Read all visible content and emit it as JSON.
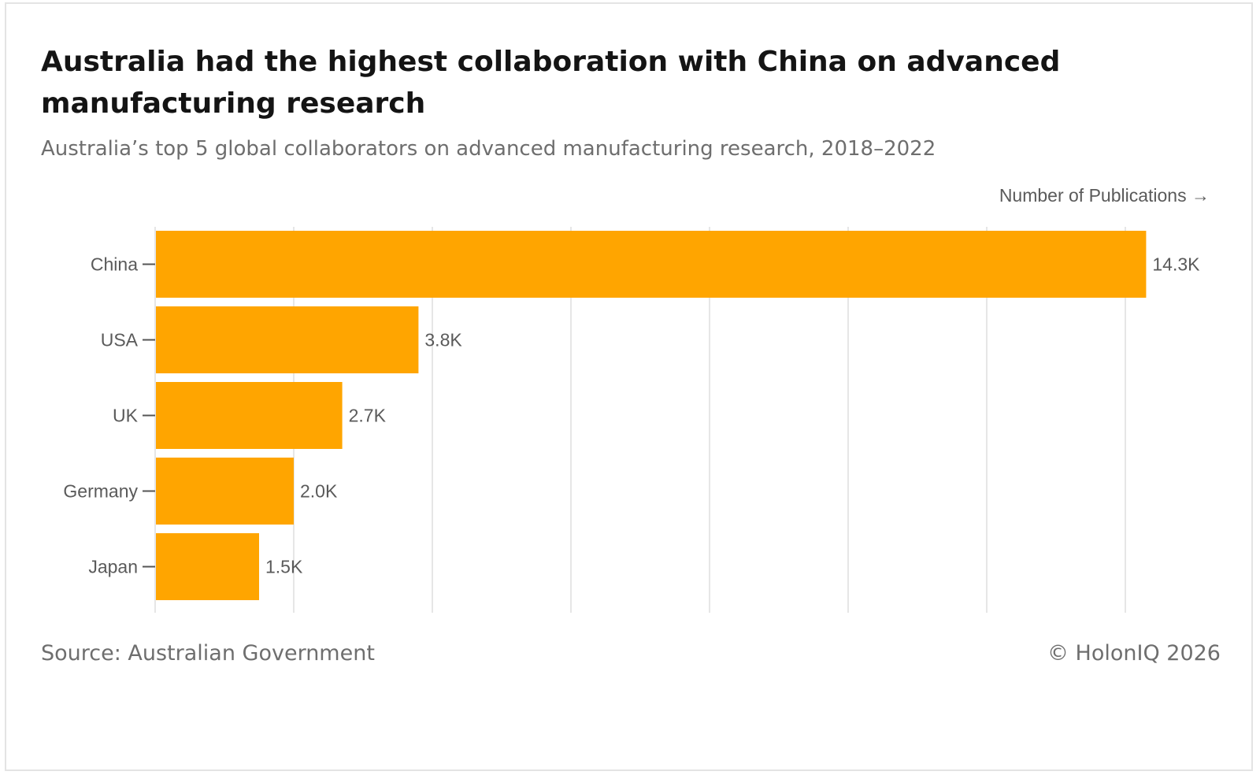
{
  "header": {
    "title": "Australia had the highest collaboration with China on advanced manufacturing research",
    "subtitle": "Australia’s top 5 global collaborators on advanced manufacturing research, 2018–2022"
  },
  "footer": {
    "source": "Source: Australian Government",
    "copyright": "© HolonIQ 2026"
  },
  "colors": {
    "bar": "#ffa500",
    "grid": "#e6e6e6",
    "axis": "#555555"
  },
  "chart_data": {
    "type": "bar",
    "orientation": "horizontal",
    "title": "Australia had the highest collaboration with China on advanced manufacturing research",
    "subtitle": "Australia’s top 5 global collaborators on advanced manufacturing research, 2018–2022",
    "xlabel": "Number of Publications →",
    "ylabel": "",
    "categories": [
      "China",
      "USA",
      "UK",
      "Germany",
      "Japan"
    ],
    "values": [
      14300,
      3800,
      2700,
      2000,
      1500
    ],
    "data_labels": [
      "14.3K",
      "3.8K",
      "2.7K",
      "2.0K",
      "1.5K"
    ],
    "xlim": [
      0,
      14000
    ],
    "grid_step": 2000,
    "grid": true,
    "tick_labels_visible": false
  }
}
